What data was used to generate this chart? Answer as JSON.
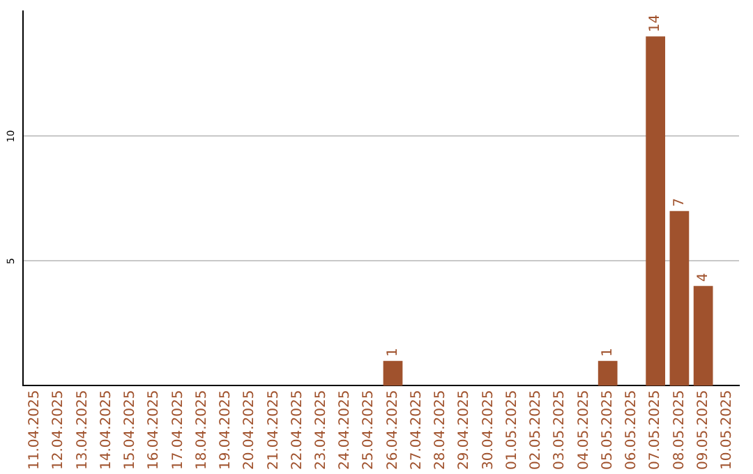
{
  "chart_data": {
    "type": "bar",
    "categories": [
      "11.04.2025",
      "12.04.2025",
      "13.04.2025",
      "14.04.2025",
      "15.04.2025",
      "16.04.2025",
      "17.04.2025",
      "18.04.2025",
      "19.04.2025",
      "20.04.2025",
      "21.04.2025",
      "22.04.2025",
      "23.04.2025",
      "24.04.2025",
      "25.04.2025",
      "26.04.2025",
      "27.04.2025",
      "28.04.2025",
      "29.04.2025",
      "30.04.2025",
      "01.05.2025",
      "02.05.2025",
      "03.05.2025",
      "04.05.2025",
      "05.05.2025",
      "06.05.2025",
      "07.05.2025",
      "08.05.2025",
      "09.05.2025",
      "10.05.2025"
    ],
    "values": [
      null,
      null,
      null,
      null,
      null,
      null,
      null,
      null,
      null,
      null,
      null,
      null,
      null,
      null,
      null,
      1,
      null,
      null,
      null,
      null,
      null,
      null,
      null,
      null,
      1,
      null,
      14,
      7,
      4,
      null
    ],
    "color": "#a0522d",
    "ylim": [
      0,
      15
    ],
    "yticks": [
      5,
      10
    ],
    "grid": "y",
    "data_labels": true,
    "legend": false
  }
}
